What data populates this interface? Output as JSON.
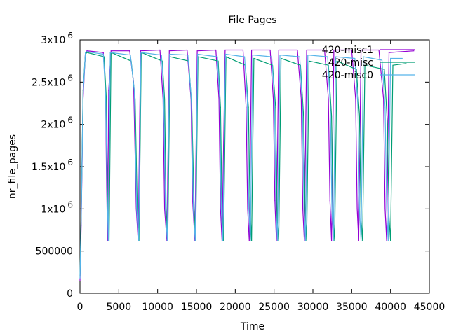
{
  "chart_data": {
    "type": "line",
    "title": "File Pages",
    "xlabel": "Time",
    "ylabel": "nr_file_pages",
    "xlim": [
      0,
      45000
    ],
    "ylim": [
      0,
      3000000
    ],
    "x_ticks": [
      {
        "value": 0,
        "label": "0"
      },
      {
        "value": 5000,
        "label": "5000"
      },
      {
        "value": 10000,
        "label": "10000"
      },
      {
        "value": 15000,
        "label": "15000"
      },
      {
        "value": 20000,
        "label": "20000"
      },
      {
        "value": 25000,
        "label": "25000"
      },
      {
        "value": 30000,
        "label": "30000"
      },
      {
        "value": 35000,
        "label": "35000"
      },
      {
        "value": 40000,
        "label": "40000"
      },
      {
        "value": 45000,
        "label": "45000"
      }
    ],
    "y_ticks": [
      {
        "value": 0,
        "label": "0",
        "exp": ""
      },
      {
        "value": 500000,
        "label": "500000",
        "exp": ""
      },
      {
        "value": 1000000,
        "label": "1x10",
        "exp": "6"
      },
      {
        "value": 1500000,
        "label": "1.5x10",
        "exp": "6"
      },
      {
        "value": 2000000,
        "label": "2x10",
        "exp": "6"
      },
      {
        "value": 2500000,
        "label": "2.5x10",
        "exp": "6"
      },
      {
        "value": 3000000,
        "label": "3x10",
        "exp": "6"
      }
    ],
    "grid": false,
    "legend_position": "top-right",
    "series": [
      {
        "name": "420-misc1",
        "color": "#9400d3",
        "x": [
          0,
          150,
          400,
          700,
          900,
          3000,
          3300,
          3400,
          3550,
          3700,
          4000,
          6400,
          6900,
          7250,
          7500,
          7800,
          10300,
          10700,
          10900,
          11200,
          11500,
          13800,
          14300,
          14500,
          14800,
          15100,
          17500,
          17900,
          18100,
          18300,
          18700,
          21000,
          21400,
          21600,
          21800,
          22100,
          24500,
          24900,
          25100,
          25300,
          25600,
          28000,
          28500,
          28700,
          28900,
          29200,
          31500,
          32000,
          32200,
          32400,
          32700,
          35000,
          35500,
          35700,
          35900,
          36200,
          38500,
          39100,
          39300,
          39500,
          39800,
          43000
        ],
        "y": [
          150000,
          800000,
          2300000,
          2850000,
          2870000,
          2850000,
          2400000,
          1500000,
          620000,
          2400000,
          2870000,
          2870000,
          2500000,
          1000000,
          620000,
          2870000,
          2880000,
          2300000,
          1000000,
          620000,
          2870000,
          2880000,
          2300000,
          1100000,
          620000,
          2870000,
          2880000,
          2300000,
          1000000,
          620000,
          2880000,
          2880000,
          2200000,
          1000000,
          620000,
          2880000,
          2880000,
          2300000,
          1100000,
          620000,
          2880000,
          2880000,
          2300000,
          1000000,
          620000,
          2880000,
          2880000,
          2300000,
          1100000,
          620000,
          2880000,
          2880000,
          2300000,
          1000000,
          620000,
          2880000,
          2880000,
          2300000,
          1000000,
          620000,
          2850000,
          2870000
        ]
      },
      {
        "name": "420-misc",
        "color": "#009e73",
        "x": [
          0,
          150,
          400,
          700,
          900,
          3100,
          3400,
          3600,
          3750,
          4000,
          6600,
          7100,
          7400,
          7600,
          7900,
          10600,
          10900,
          11100,
          11300,
          11600,
          14000,
          14400,
          14700,
          14900,
          15200,
          17800,
          18100,
          18300,
          18500,
          18800,
          21300,
          21700,
          21900,
          22100,
          22400,
          24800,
          25200,
          25400,
          25600,
          25900,
          28400,
          28800,
          29000,
          29200,
          29500,
          32000,
          32400,
          32600,
          32800,
          33100,
          35600,
          36000,
          36200,
          36400,
          36700,
          39200,
          39600,
          39800,
          40000,
          40300,
          42000
        ],
        "y": [
          200000,
          900000,
          2400000,
          2830000,
          2850000,
          2800000,
          2300000,
          900000,
          620000,
          2850000,
          2750000,
          2300000,
          900000,
          620000,
          2850000,
          2750000,
          2300000,
          1000000,
          620000,
          2800000,
          2750000,
          2200000,
          1000000,
          620000,
          2800000,
          2750000,
          2200000,
          900000,
          620000,
          2800000,
          2700000,
          2200000,
          1000000,
          620000,
          2780000,
          2700000,
          2200000,
          900000,
          620000,
          2780000,
          2700000,
          2100000,
          1000000,
          620000,
          2750000,
          2700000,
          2100000,
          900000,
          620000,
          2750000,
          2650000,
          2100000,
          900000,
          620000,
          2700000,
          2650000,
          2000000,
          900000,
          620000,
          2700000,
          2720000
        ]
      },
      {
        "name": "420-misc0",
        "color": "#56b4e9",
        "x": [
          0,
          150,
          400,
          700,
          900,
          3000,
          3300,
          3500,
          3650,
          3900,
          6500,
          7000,
          7300,
          7550,
          7850,
          10500,
          10800,
          11000,
          11250,
          11550,
          13900,
          14350,
          14600,
          14850,
          15150,
          17700,
          18000,
          18200,
          18400,
          18750,
          21200,
          21550,
          21750,
          21950,
          22250,
          24700,
          25050,
          25250,
          25450,
          25750,
          28300,
          28650,
          28850,
          29050,
          29350,
          31900,
          32250,
          32450,
          32650,
          32950,
          35400,
          35800,
          36000,
          36200,
          36500,
          38900,
          39300,
          39500,
          39700,
          40000,
          41500
        ],
        "y": [
          180000,
          850000,
          2350000,
          2850000,
          2860000,
          2830000,
          2350000,
          1200000,
          620000,
          2850000,
          2820000,
          2400000,
          1000000,
          620000,
          2850000,
          2820000,
          2350000,
          1000000,
          620000,
          2830000,
          2820000,
          2300000,
          1000000,
          620000,
          2830000,
          2800000,
          2300000,
          1000000,
          620000,
          2830000,
          2800000,
          2300000,
          1000000,
          620000,
          2820000,
          2800000,
          2300000,
          1000000,
          620000,
          2820000,
          2800000,
          2200000,
          1000000,
          620000,
          2820000,
          2800000,
          2200000,
          1000000,
          620000,
          2800000,
          2780000,
          2200000,
          1000000,
          620000,
          2800000,
          2760000,
          2200000,
          1000000,
          620000,
          2780000,
          2780000
        ]
      }
    ]
  }
}
